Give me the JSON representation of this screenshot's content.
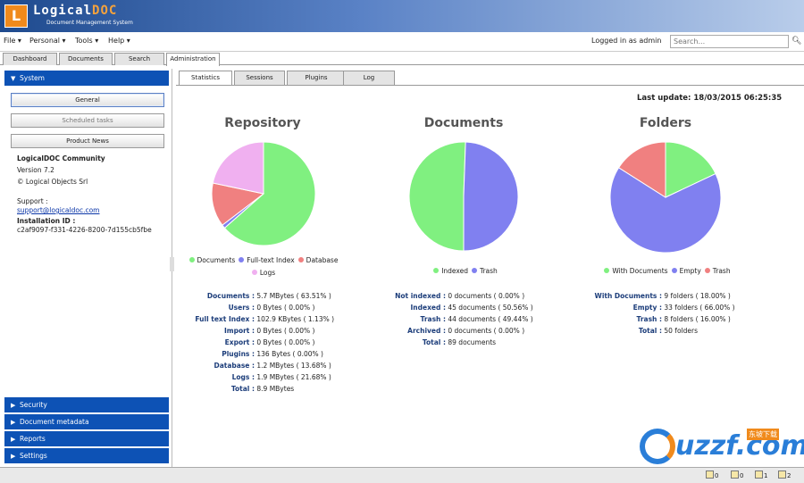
{
  "header": {
    "logo_mark": "L",
    "logo_name": "Logical",
    "logo_doc": "DOC",
    "subtitle": "Document Management System"
  },
  "menu": {
    "items": [
      "File",
      "Personal",
      "Tools",
      "Help"
    ],
    "logged_in": "Logged in as admin",
    "search_placeholder": "Search..."
  },
  "top_tabs": [
    "Dashboard",
    "Documents",
    "Search",
    "Administration"
  ],
  "sidebar": {
    "system_header": "System",
    "buttons": [
      "General",
      "Scheduled tasks",
      "Product News"
    ],
    "info": {
      "product": "LogicalDOC Community",
      "version": "Version 7.2",
      "copyright": "© Logical Objects Srl",
      "support_label": "Support :",
      "support_link": "support@logicaldoc.com",
      "installation_label": "Installation ID :",
      "installation_id": "c2af9097-f331-4226-8200-7d155cb5fbe"
    },
    "sections": [
      "Security",
      "Document metadata",
      "Reports",
      "Settings"
    ]
  },
  "main": {
    "tabs": [
      "Statistics",
      "Sessions",
      "Plugins",
      "Log"
    ],
    "last_update": "Last update: 18/03/2015 06:25:35"
  },
  "colors": {
    "green": "#80f080",
    "blue": "#8080f0",
    "red": "#f08080",
    "pink": "#f0b0f0"
  },
  "chart_data": [
    {
      "type": "pie",
      "title": "Repository",
      "categories": [
        "Documents",
        "Full-text Index",
        "Database",
        "Logs"
      ],
      "values": [
        63.51,
        1.13,
        13.68,
        21.68
      ],
      "colors": [
        "#80f080",
        "#8080f0",
        "#f08080",
        "#f0b0f0"
      ],
      "legend": "bottom",
      "stats": [
        {
          "label": "Documents :",
          "value": "5.7 MBytes ( 63.51% )"
        },
        {
          "label": "Users :",
          "value": "0 Bytes ( 0.00% )"
        },
        {
          "label": "Full text Index :",
          "value": "102.9 KBytes ( 1.13% )"
        },
        {
          "label": "Import :",
          "value": "0 Bytes ( 0.00% )"
        },
        {
          "label": "Export :",
          "value": "0 Bytes ( 0.00% )"
        },
        {
          "label": "Plugins :",
          "value": "136 Bytes ( 0.00% )"
        },
        {
          "label": "Database :",
          "value": "1.2 MBytes ( 13.68% )"
        },
        {
          "label": "Logs :",
          "value": "1.9 MBytes ( 21.68% )"
        },
        {
          "label": "Total :",
          "value": "8.9 MBytes"
        }
      ]
    },
    {
      "type": "pie",
      "title": "Documents",
      "categories": [
        "Indexed",
        "Trash"
      ],
      "values": [
        50.56,
        49.44
      ],
      "colors": [
        "#80f080",
        "#8080f0"
      ],
      "legend": "bottom",
      "stats": [
        {
          "label": "Not indexed :",
          "value": "0 documents ( 0.00% )"
        },
        {
          "label": "Indexed :",
          "value": "45 documents ( 50.56% )"
        },
        {
          "label": "Trash :",
          "value": "44 documents ( 49.44% )"
        },
        {
          "label": "Archived :",
          "value": "0 documents ( 0.00% )"
        },
        {
          "label": "Total :",
          "value": "89 documents"
        }
      ]
    },
    {
      "type": "pie",
      "title": "Folders",
      "categories": [
        "With Documents",
        "Empty",
        "Trash"
      ],
      "values": [
        18.0,
        66.0,
        16.0
      ],
      "colors": [
        "#80f080",
        "#8080f0",
        "#f08080"
      ],
      "legend": "bottom",
      "stats": [
        {
          "label": "With Documents :",
          "value": "9 folders ( 18.00% )"
        },
        {
          "label": "Empty :",
          "value": "33 folders ( 66.00% )"
        },
        {
          "label": "Trash :",
          "value": "8 folders ( 16.00% )"
        },
        {
          "label": "Total :",
          "value": "50 folders"
        }
      ]
    }
  ],
  "status_bar": {
    "counts": [
      "0",
      "0",
      "1",
      "2"
    ]
  },
  "watermark": {
    "text": "uzzf.com",
    "cn": "东坡下载"
  }
}
